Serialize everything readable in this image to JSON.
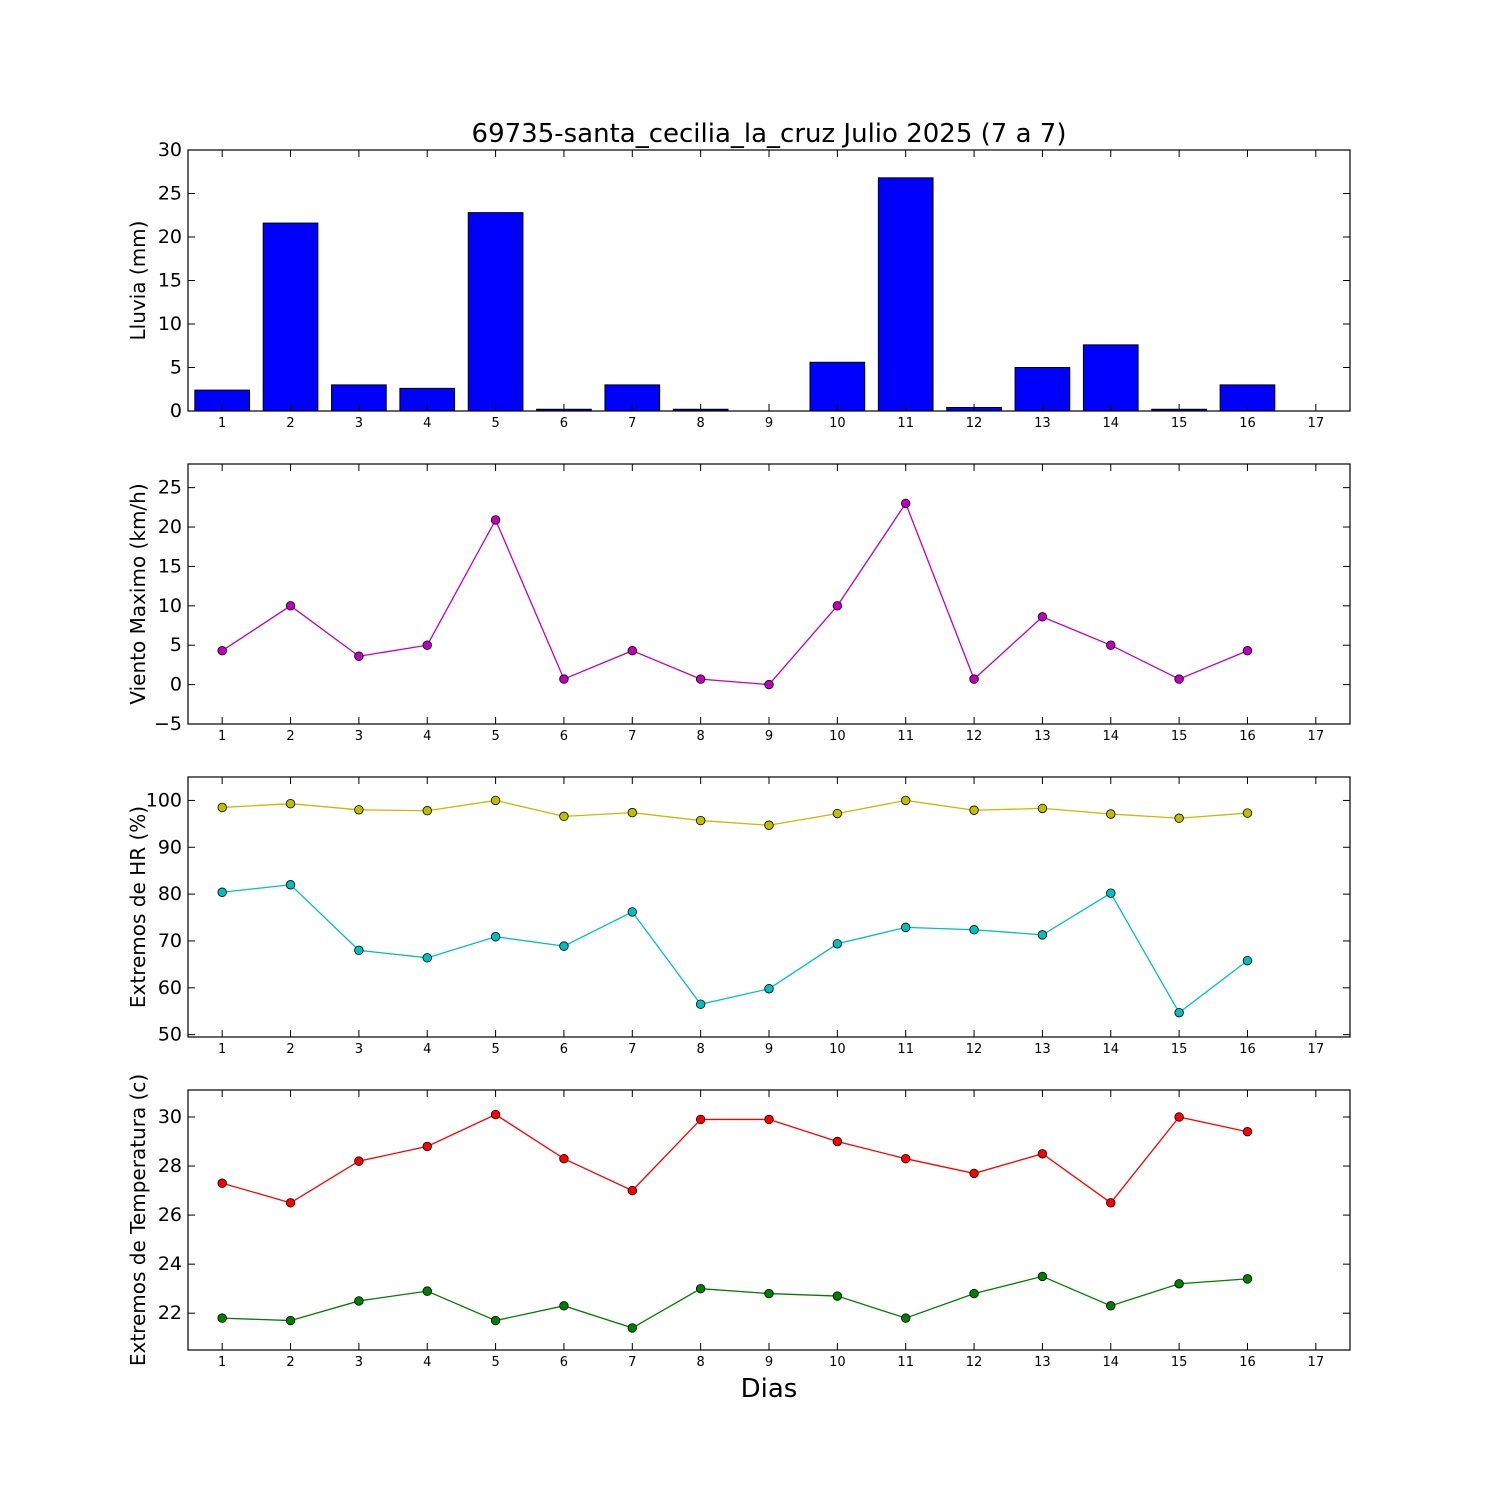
{
  "figure": {
    "title": "69735-santa_cecilia_la_cruz Julio 2025  (7 a 7)",
    "xlabel": "Dias"
  },
  "chart_data": [
    {
      "type": "bar",
      "ylabel": "Lluvia (mm)",
      "categories": [
        1,
        2,
        3,
        4,
        5,
        6,
        7,
        8,
        9,
        10,
        11,
        12,
        13,
        14,
        15,
        16,
        17
      ],
      "x": [
        1,
        2,
        3,
        4,
        5,
        6,
        7,
        8,
        9,
        10,
        11,
        12,
        13,
        14,
        15,
        16
      ],
      "values": [
        2.4,
        21.6,
        3.0,
        2.6,
        22.8,
        0.2,
        3.0,
        0.2,
        0.0,
        5.6,
        26.8,
        0.4,
        5.0,
        7.6,
        0.2,
        3.0
      ],
      "xlim": [
        0.5,
        17.5
      ],
      "ylim": [
        0,
        30
      ],
      "yticks": [
        0,
        5,
        10,
        15,
        20,
        25,
        30
      ],
      "color": "#0000ff",
      "grid": false
    },
    {
      "type": "line",
      "ylabel": "Viento Maximo (km/h)",
      "categories": [
        1,
        2,
        3,
        4,
        5,
        6,
        7,
        8,
        9,
        10,
        11,
        12,
        13,
        14,
        15,
        16,
        17
      ],
      "x": [
        1,
        2,
        3,
        4,
        5,
        6,
        7,
        8,
        9,
        10,
        11,
        12,
        13,
        14,
        15,
        16
      ],
      "series": [
        {
          "values": [
            4.3,
            10.0,
            3.6,
            5.0,
            20.9,
            0.7,
            4.3,
            0.7,
            0.0,
            10.0,
            23.0,
            0.7,
            8.6,
            5.0,
            0.7,
            4.3
          ],
          "color": "#bf00bf"
        }
      ],
      "xlim": [
        0.5,
        17.5
      ],
      "ylim": [
        -5,
        28
      ],
      "yticks": [
        -5,
        0,
        5,
        10,
        15,
        20,
        25
      ],
      "grid": false
    },
    {
      "type": "line",
      "ylabel": "Extremos de HR (%)",
      "categories": [
        1,
        2,
        3,
        4,
        5,
        6,
        7,
        8,
        9,
        10,
        11,
        12,
        13,
        14,
        15,
        16,
        17
      ],
      "x": [
        1,
        2,
        3,
        4,
        5,
        6,
        7,
        8,
        9,
        10,
        11,
        12,
        13,
        14,
        15,
        16
      ],
      "series": [
        {
          "values": [
            98.5,
            99.3,
            98.0,
            97.8,
            100.0,
            96.6,
            97.4,
            95.7,
            94.7,
            97.2,
            100.0,
            97.9,
            98.3,
            97.1,
            96.2,
            97.3
          ],
          "color": "#bfbf00"
        },
        {
          "values": [
            80.4,
            82.0,
            68.0,
            66.4,
            70.9,
            68.9,
            76.2,
            56.5,
            59.8,
            69.4,
            72.9,
            72.4,
            71.3,
            80.2,
            54.7,
            65.8
          ],
          "color": "#00bfbf"
        }
      ],
      "xlim": [
        0.5,
        17.5
      ],
      "ylim": [
        49.5,
        105
      ],
      "yticks": [
        50,
        60,
        70,
        80,
        90,
        100
      ],
      "grid": false
    },
    {
      "type": "line",
      "ylabel": "Extremos de Temperatura (c)",
      "categories": [
        1,
        2,
        3,
        4,
        5,
        6,
        7,
        8,
        9,
        10,
        11,
        12,
        13,
        14,
        15,
        16,
        17
      ],
      "x": [
        1,
        2,
        3,
        4,
        5,
        6,
        7,
        8,
        9,
        10,
        11,
        12,
        13,
        14,
        15,
        16
      ],
      "series": [
        {
          "values": [
            27.3,
            26.5,
            28.2,
            28.8,
            30.1,
            28.3,
            27.0,
            29.9,
            29.9,
            29.0,
            28.3,
            27.7,
            28.5,
            26.5,
            30.0,
            29.4
          ],
          "color": "#ff0000"
        },
        {
          "values": [
            21.8,
            21.7,
            22.5,
            22.9,
            21.7,
            22.3,
            21.4,
            23.0,
            22.8,
            22.7,
            21.8,
            22.8,
            23.5,
            22.3,
            23.2,
            23.4
          ],
          "color": "#007f00"
        }
      ],
      "xlim": [
        0.5,
        17.5
      ],
      "ylim": [
        20.5,
        31.1
      ],
      "yticks": [
        22,
        24,
        26,
        28,
        30
      ],
      "grid": false
    }
  ]
}
